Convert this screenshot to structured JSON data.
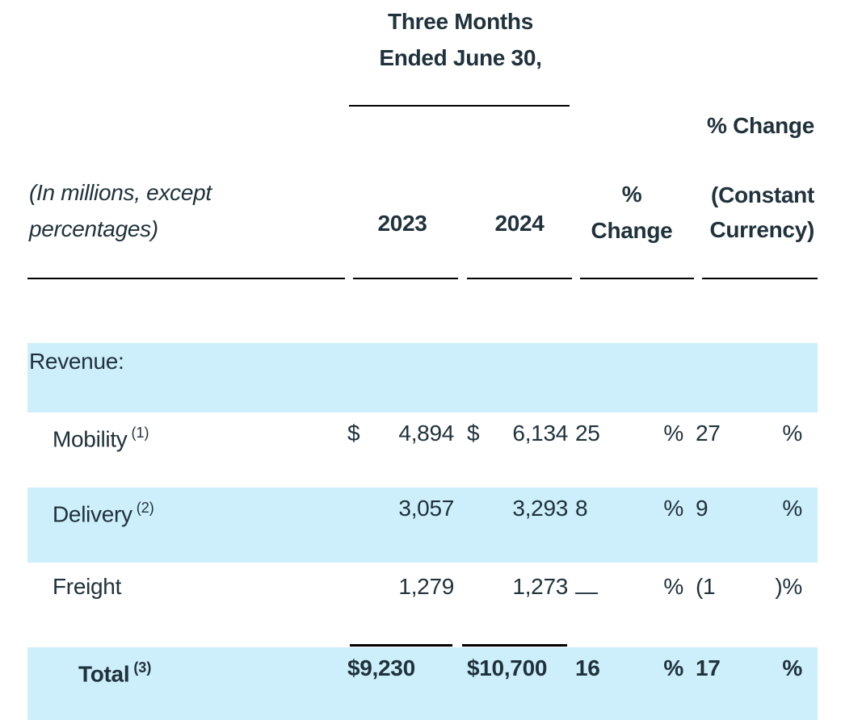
{
  "colors": {
    "text": "#20323c",
    "row_highlight": "#cdeefb",
    "rule": "#000000",
    "background": "#ffffff"
  },
  "table": {
    "period_header": {
      "line1": "Three Months",
      "line2": "Ended June 30,"
    },
    "col_headers": {
      "label_line1": "(In millions, except",
      "label_line2": "percentages)",
      "y2023": "2023",
      "y2024": "2024",
      "pct_change_line1": "%",
      "pct_change_line2": "Change",
      "pct_change_cc_line1": "% Change",
      "pct_change_cc_line2": "(Constant",
      "pct_change_cc_line3": "Currency)"
    },
    "rows": [
      {
        "label": "Revenue:"
      },
      {
        "label": "Mobility",
        "footnote": "(1)",
        "cur2023": "$",
        "val2023": "4,894",
        "cur2024": "$",
        "val2024": "6,134",
        "chg": "25",
        "chg_sym": "%",
        "cc": "27",
        "cc_sym": "%"
      },
      {
        "label": "Delivery",
        "footnote": "(2)",
        "val2023": "3,057",
        "val2024": "3,293",
        "chg": "8",
        "chg_sym": "%",
        "cc": "9",
        "cc_sym": "%"
      },
      {
        "label": "Freight",
        "val2023": "1,279",
        "val2024": "1,273",
        "chg": "—",
        "chg_sym": "%",
        "cc": "(1",
        "cc_sym": ")%"
      },
      {
        "label": "Total",
        "footnote": "(3)",
        "val2023": "$9,230",
        "val2024": "$10,700",
        "chg": "16",
        "chg_sym": "%",
        "cc": "17",
        "cc_sym": "%"
      }
    ]
  }
}
